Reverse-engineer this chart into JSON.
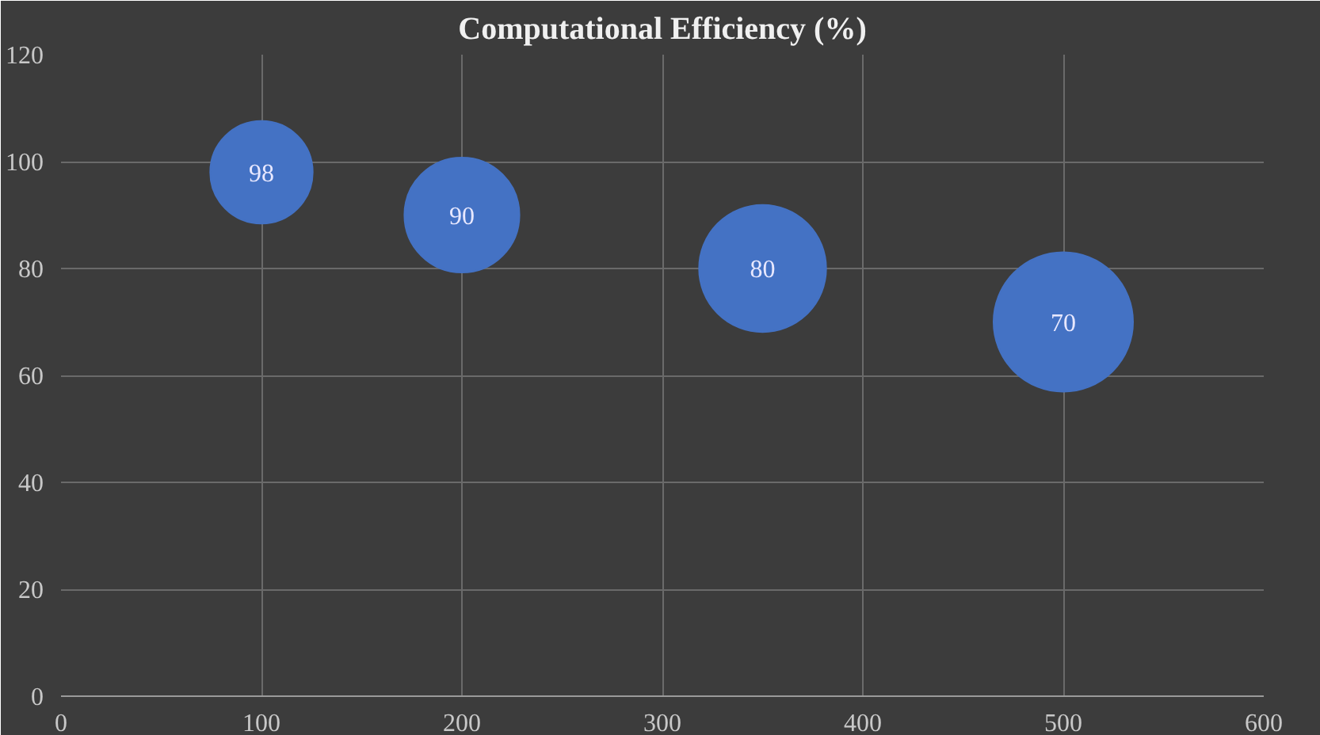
{
  "chart_data": {
    "type": "bubble",
    "title": "Computational Efficiency (%)",
    "x": [
      100,
      200,
      350,
      500
    ],
    "values": [
      98,
      90,
      80,
      70
    ],
    "sizes": [
      0.54,
      0.68,
      0.83,
      1
    ],
    "color": "#4472c4",
    "data_labels": true,
    "xlim": [
      0,
      600
    ],
    "xticks": [
      0,
      100,
      200,
      300,
      400,
      500,
      600
    ],
    "ylim": [
      0,
      120
    ],
    "yticks": [
      0,
      20,
      40,
      60,
      80,
      100,
      120
    ],
    "grid": true
  }
}
